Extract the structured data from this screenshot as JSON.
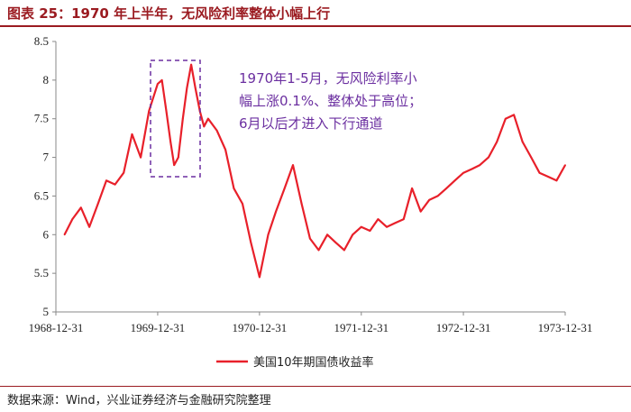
{
  "figure": {
    "title": "图表 25：1970 年上半年，无风险利率整体小幅上行",
    "source": "数据来源：Wind，兴业证券经济与金融研究院整理"
  },
  "colors": {
    "series": "#e8202a",
    "annotation": "#6b2fa0",
    "title": "#9b1b21"
  },
  "annotation": {
    "lines": [
      "1970年1-5月，无风险利率小",
      "幅上涨0.1%、整体处于高位；",
      "6月以后才进入下行通道"
    ]
  },
  "chart_data": {
    "type": "line",
    "title": "",
    "xlabel": "",
    "ylabel": "",
    "ylim": [
      5,
      8.5
    ],
    "yticks": [
      "5",
      "5.5",
      "6",
      "6.5",
      "7",
      "7.5",
      "8",
      "8.5"
    ],
    "xticks": [
      "1968-12-31",
      "1969-12-31",
      "1970-12-31",
      "1971-12-31",
      "1972-12-31",
      "1973-12-31"
    ],
    "grid": false,
    "legend_position": "bottom",
    "series": [
      {
        "name": "美国10年期国债收益率",
        "x": [
          "1969-01-31",
          "1969-02-28",
          "1969-03-31",
          "1969-04-30",
          "1969-05-31",
          "1969-06-30",
          "1969-07-31",
          "1969-08-31",
          "1969-09-30",
          "1969-10-31",
          "1969-11-30",
          "1969-12-31",
          "1970-01-15",
          "1970-01-31",
          "1970-02-15",
          "1970-02-28",
          "1970-03-15",
          "1970-03-31",
          "1970-04-15",
          "1970-04-30",
          "1970-05-15",
          "1970-05-31",
          "1970-06-15",
          "1970-06-30",
          "1970-07-31",
          "1970-08-31",
          "1970-09-30",
          "1970-10-31",
          "1970-11-30",
          "1970-12-31",
          "1971-01-31",
          "1971-02-28",
          "1971-03-31",
          "1971-04-30",
          "1971-05-31",
          "1971-06-30",
          "1971-07-31",
          "1971-08-31",
          "1971-09-30",
          "1971-10-31",
          "1971-11-30",
          "1971-12-31",
          "1972-01-31",
          "1972-02-29",
          "1972-03-31",
          "1972-04-30",
          "1972-05-31",
          "1972-06-30",
          "1972-07-31",
          "1972-08-31",
          "1972-09-30",
          "1972-10-31",
          "1972-11-30",
          "1972-12-31",
          "1973-01-31",
          "1973-02-28",
          "1973-03-31",
          "1973-04-30",
          "1973-05-31",
          "1973-06-30",
          "1973-07-31",
          "1973-08-31",
          "1973-09-30",
          "1973-10-31",
          "1973-11-30",
          "1973-12-31"
        ],
        "values": [
          6.0,
          6.2,
          6.35,
          6.1,
          6.4,
          6.7,
          6.65,
          6.8,
          7.3,
          7.0,
          7.6,
          7.95,
          8.0,
          7.6,
          7.2,
          6.9,
          7.0,
          7.5,
          7.9,
          8.2,
          7.9,
          7.6,
          7.4,
          7.5,
          7.35,
          7.1,
          6.6,
          6.4,
          5.9,
          5.45,
          6.0,
          6.3,
          6.6,
          6.9,
          6.4,
          5.95,
          5.8,
          6.0,
          5.9,
          5.8,
          6.0,
          6.1,
          6.05,
          6.2,
          6.1,
          6.15,
          6.2,
          6.6,
          6.3,
          6.45,
          6.5,
          6.6,
          6.7,
          6.8,
          6.85,
          6.9,
          7.0,
          7.2,
          7.5,
          7.55,
          7.2,
          7.0,
          6.8,
          6.75,
          6.7,
          6.9
        ]
      }
    ]
  }
}
